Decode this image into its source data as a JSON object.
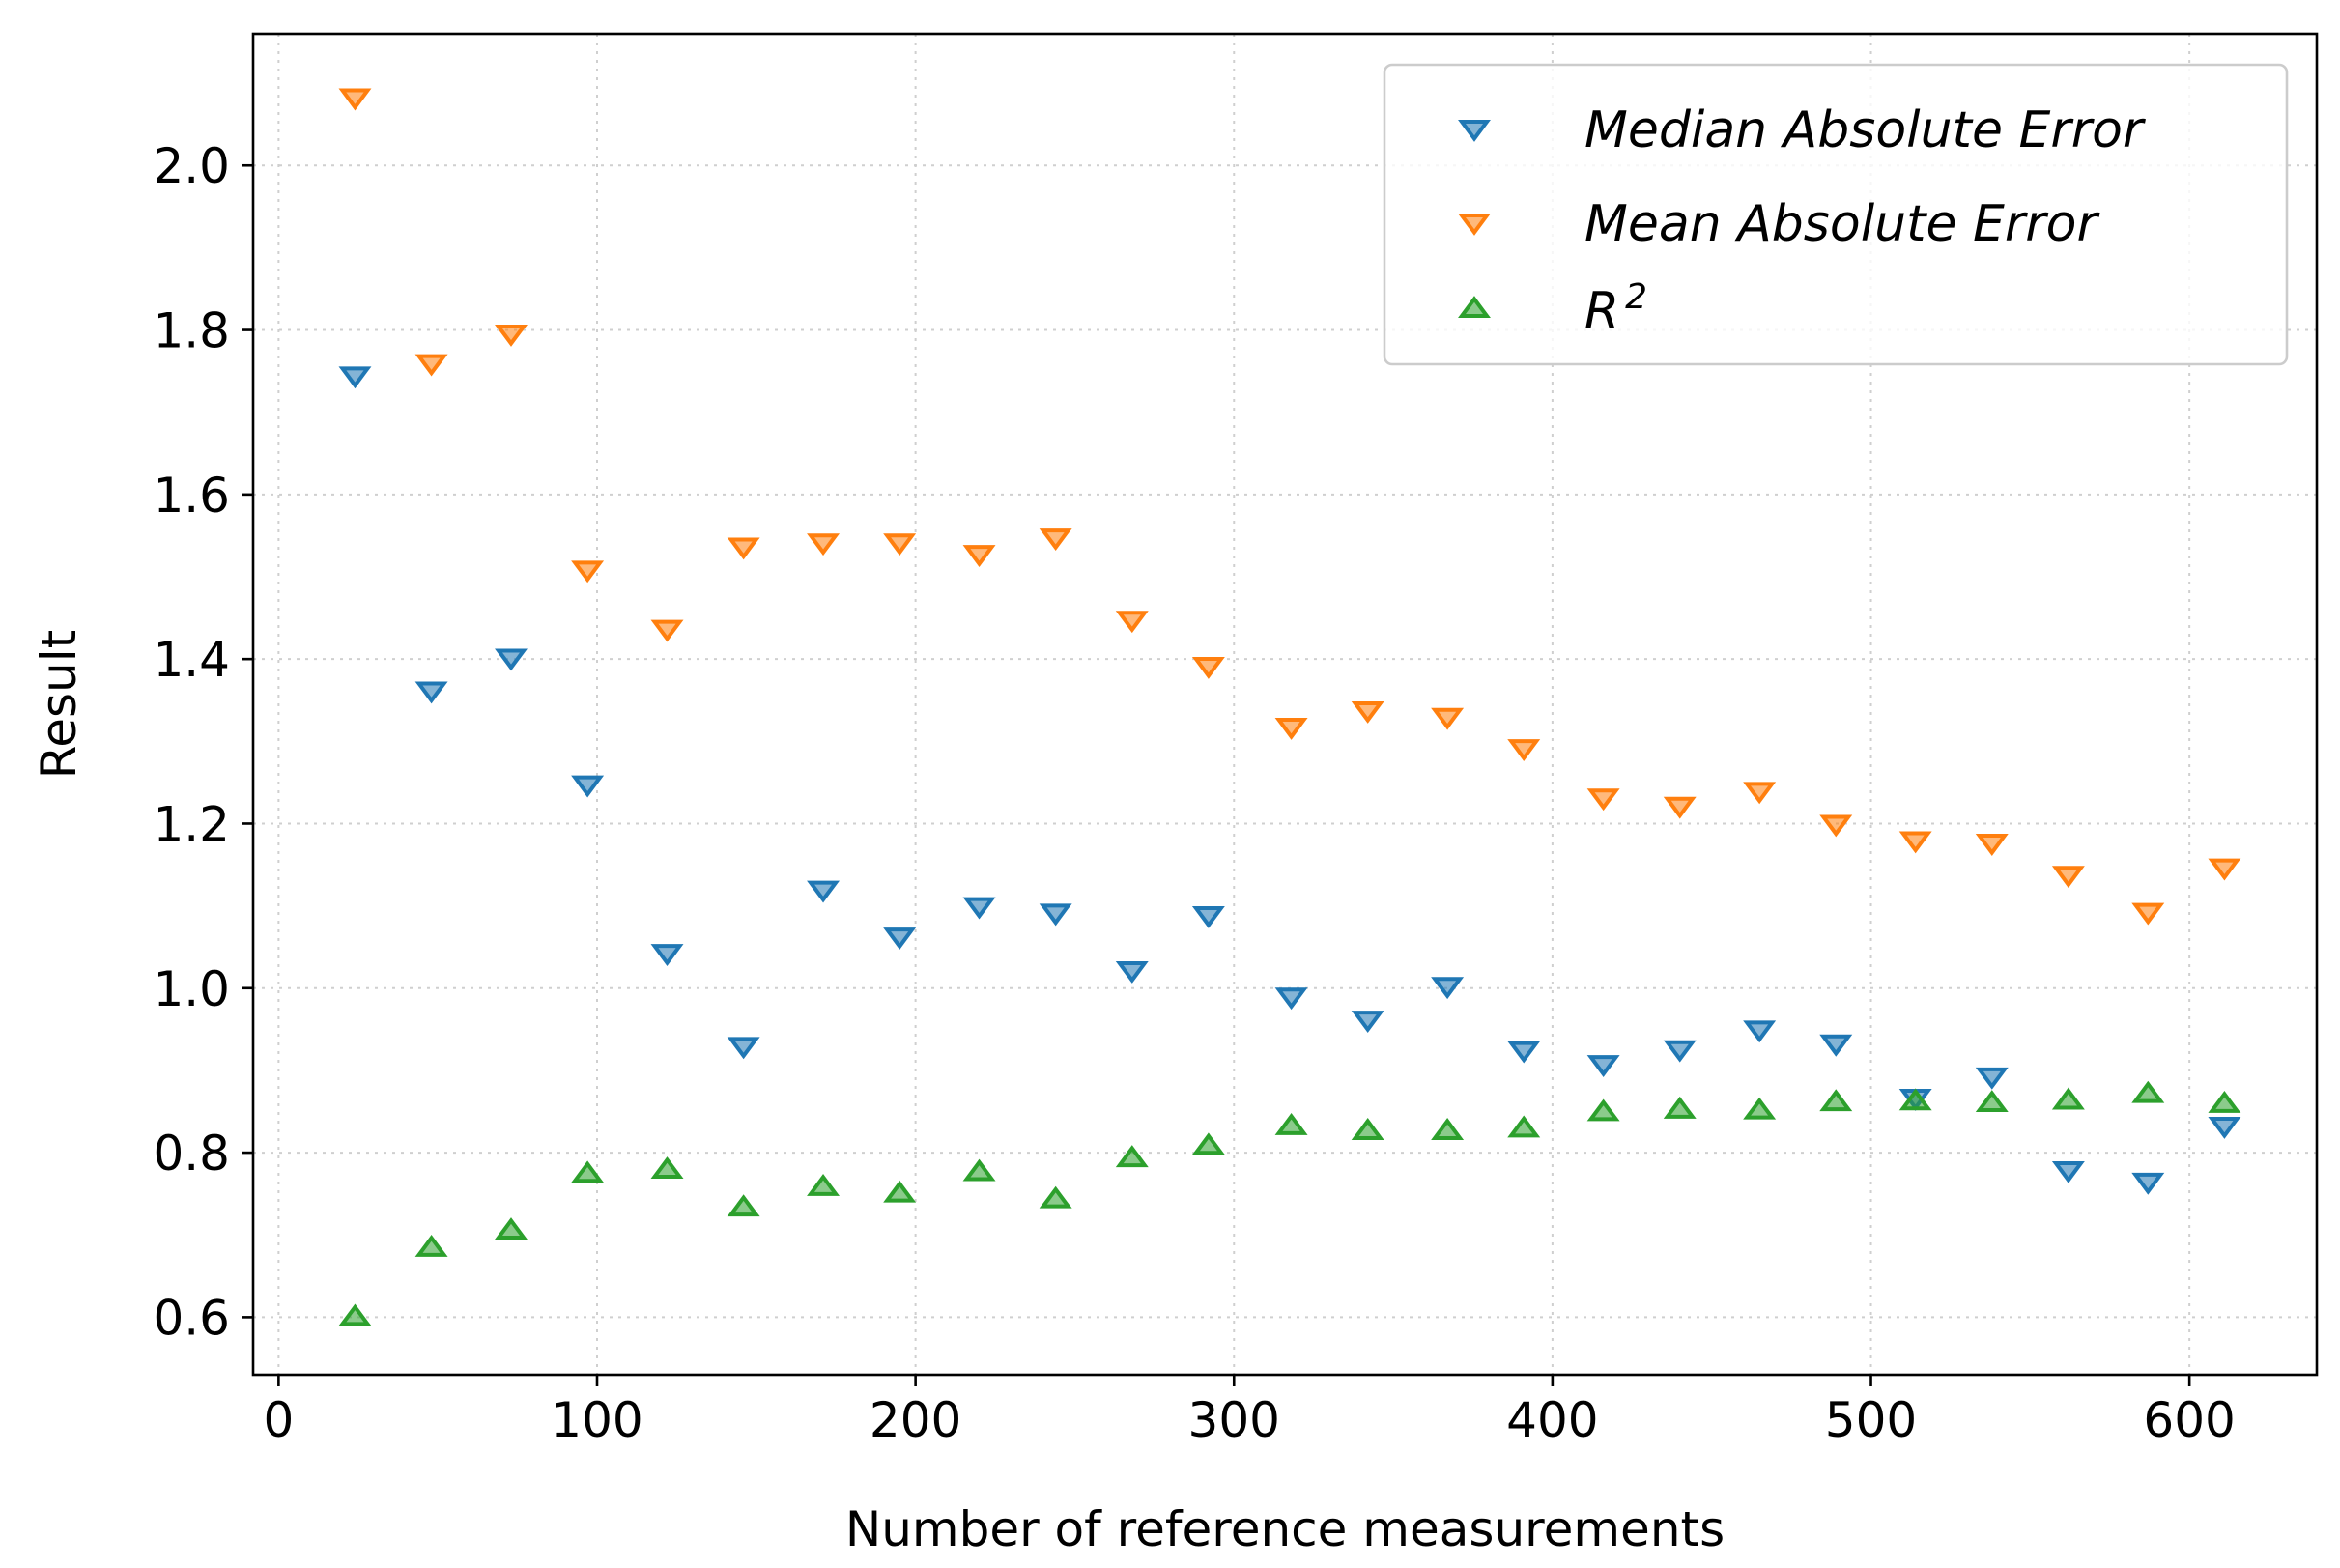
{
  "chart_data": {
    "type": "scatter",
    "title": "",
    "xlabel": "Number of reference measurements",
    "ylabel": "Result",
    "xlim": [
      -8,
      640
    ],
    "ylim": [
      0.53,
      2.16
    ],
    "xticks": [
      0,
      100,
      200,
      300,
      400,
      500,
      600
    ],
    "yticks": [
      0.6,
      0.8,
      1.0,
      1.2,
      1.4,
      1.6,
      1.8,
      2.0
    ],
    "ytick_labels": [
      "0.6",
      "0.8",
      "1.0",
      "1.2",
      "1.4",
      "1.6",
      "1.8",
      "2.0"
    ],
    "grid": true,
    "legend_position": "top-right",
    "x": [
      24,
      48,
      73,
      97,
      122,
      146,
      171,
      195,
      220,
      244,
      268,
      292,
      318,
      342,
      367,
      391,
      416,
      440,
      465,
      489,
      514,
      538,
      562,
      587,
      611
    ],
    "series": [
      {
        "name": "Median Absolute Error",
        "marker": "triangle-down",
        "color": "#1f77b4",
        "values": [
          1.745,
          1.362,
          1.402,
          1.248,
          1.043,
          0.93,
          1.12,
          1.063,
          1.1,
          1.092,
          1.022,
          1.089,
          0.99,
          0.962,
          1.003,
          0.925,
          0.908,
          0.926,
          0.95,
          0.933,
          0.867,
          0.893,
          0.779,
          0.765,
          0.833
        ]
      },
      {
        "name": "Mean Absolute Error",
        "marker": "triangle-down",
        "color": "#ff7f0e",
        "values": [
          2.083,
          1.76,
          1.796,
          1.509,
          1.437,
          1.537,
          1.542,
          1.542,
          1.528,
          1.548,
          1.448,
          1.392,
          1.318,
          1.338,
          1.33,
          1.292,
          1.232,
          1.222,
          1.24,
          1.2,
          1.18,
          1.177,
          1.138,
          1.093,
          1.147
        ]
      },
      {
        "name": "R^2",
        "marker": "triangle-up",
        "color": "#2ca02c",
        "values": [
          0.6,
          0.684,
          0.705,
          0.774,
          0.779,
          0.733,
          0.758,
          0.75,
          0.776,
          0.743,
          0.793,
          0.808,
          0.832,
          0.826,
          0.826,
          0.829,
          0.849,
          0.852,
          0.851,
          0.861,
          0.862,
          0.86,
          0.863,
          0.871,
          0.859
        ]
      }
    ],
    "legend": [
      {
        "label": "Median Absolute Error"
      },
      {
        "label": "Mean Absolute Error"
      },
      {
        "label_base": "R",
        "label_sup": "2"
      }
    ]
  }
}
